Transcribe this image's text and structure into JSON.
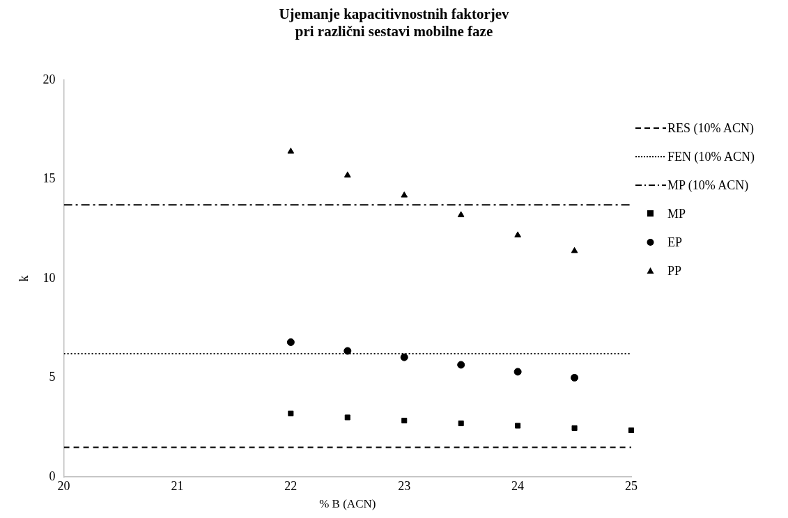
{
  "chart_data": {
    "type": "scatter",
    "title": "Ujemanje kapacitivnostnih faktorjev\npri različni sestavi mobilne faze",
    "xlabel": "% B (ACN)",
    "ylabel": "k",
    "xlim": [
      20,
      25
    ],
    "xticks": [
      20,
      21,
      22,
      23,
      24,
      25
    ],
    "ylim": [
      0,
      20
    ],
    "yticks": [
      0,
      5,
      10,
      15,
      20
    ],
    "grid": false,
    "legend": "right",
    "series": [
      {
        "name": "RES (10% ACN)",
        "type": "line",
        "color": "#000000",
        "line_style": "dashed",
        "marker": "none",
        "x": [
          20,
          25
        ],
        "values": [
          1.49,
          1.49
        ]
      },
      {
        "name": "FEN (10% ACN)",
        "type": "line",
        "color": "#000000",
        "line_style": "dotted",
        "marker": "none",
        "x": [
          20,
          25
        ],
        "values": [
          6.21,
          6.21
        ]
      },
      {
        "name": "MP (10% ACN)",
        "type": "line",
        "color": "#000000",
        "line_style": "dashdot",
        "marker": "none",
        "x": [
          20,
          25
        ],
        "values": [
          13.71,
          13.71
        ]
      },
      {
        "name": "MP",
        "color": "#000000",
        "marker": "square",
        "x": [
          22,
          22.5,
          23,
          23.5,
          24,
          24.5,
          25
        ],
        "values": [
          3.2,
          3.0,
          2.84,
          2.7,
          2.58,
          2.46,
          2.35
        ]
      },
      {
        "name": "EP",
        "color": "#000000",
        "marker": "circle",
        "x": [
          22,
          22.5,
          23,
          23.5,
          24,
          24.5
        ],
        "values": [
          6.79,
          6.35,
          6.03,
          5.65,
          5.3,
          5.0
        ]
      },
      {
        "name": "PP",
        "color": "#000000",
        "marker": "triangle",
        "x": [
          22,
          22.5,
          23,
          23.5,
          24,
          24.5
        ],
        "values": [
          16.4,
          15.2,
          14.19,
          13.2,
          12.18,
          11.39
        ]
      }
    ]
  }
}
